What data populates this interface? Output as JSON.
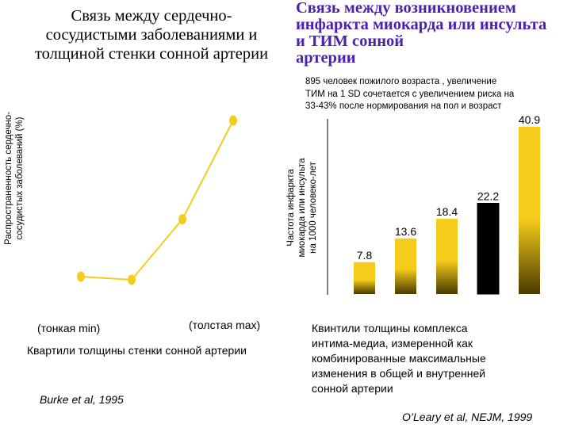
{
  "left_title": "Связь между сердечно-\nсосудистыми заболеваниями и\nтолщиной стенки сонной артерии",
  "right_title": "Связь между возникновением\nинфаркта миокарда или инсульта\nи ТИМ сонной\nартерии",
  "right_subtitle": "895 человек пожилого возраста , увеличение\nТИМ на 1 SD сочетается с увеличением риска на\n33-43% после нормирования на пол и возраст",
  "left_ylabel": "Распространенность сердечно-\nсосудистых заболеваний (%)",
  "left_thin_label": "(тонкая min)",
  "left_thick_label": "(толстая max)",
  "left_xlabel": "Квартили толщины стенки сонной артерии",
  "left_citation": "Burke et al, 1995",
  "right_ylabel": "Частота инфаркта\nмиокарда или инсульта\nна 1000 человеко-лет",
  "right_xlabel": "Квинтили толщины комплекса\nинтима-медиа, измеренной как\nкомбинированные максимальные\nизменения в общей и внутренней\nсонной артерии",
  "right_citation": "O’Leary et al, NEJM, 1999",
  "colors": {
    "right_title": "#4b1fb0",
    "line": "#f5cc1b",
    "bar_top": "#f5cc1b",
    "bar_bottom": "#4a3a00",
    "bar_highlight_top": "#000000"
  },
  "chart_data": [
    {
      "type": "line",
      "x": [
        1,
        2,
        3,
        4
      ],
      "y": [
        1,
        0,
        19,
        50
      ],
      "values_note": "no numeric axis printed; y estimated relative",
      "ylim": [
        0,
        50
      ],
      "xlabel": "Квартили толщины стенки сонной артерии",
      "ylabel": "Распространенность сердечно-сосудистых заболеваний (%)",
      "grid": false
    },
    {
      "type": "bar",
      "categories": [
        "1",
        "2",
        "3",
        "4",
        "5"
      ],
      "values": [
        7.8,
        13.6,
        18.4,
        22.2,
        40.9
      ],
      "ylim": [
        0,
        42
      ],
      "xlabel": "Квинтили толщины комплекса интима-медиа",
      "ylabel": "Частота инфаркта миокарда или инсульта на 1000 человеко-лет",
      "highlight_index": 3,
      "grid": false
    }
  ]
}
